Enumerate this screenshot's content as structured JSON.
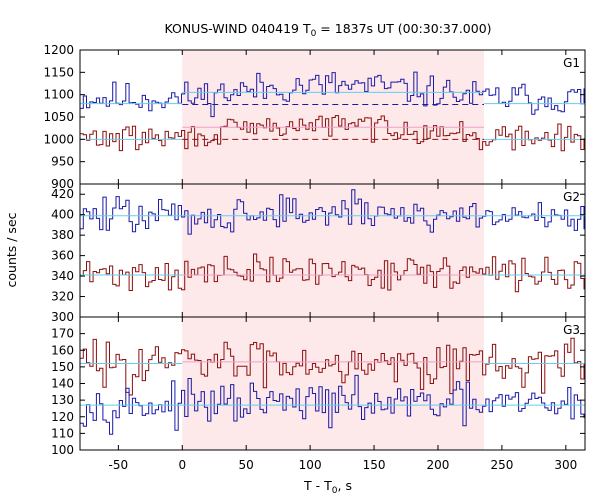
{
  "chart_data": {
    "type": "line",
    "title": "KONUS-WIND 040419 T0 = 1837s UT (00:30:37.000)",
    "title_parts": {
      "before": "KONUS-WIND 040419 T",
      "sub": "0",
      "after": " = 1837s UT (00:30:37.000)"
    },
    "xlabel_parts": {
      "before": "T - T",
      "sub": "0",
      "after": ", s"
    },
    "ylabel": "counts / sec",
    "xlim": [
      -80,
      315
    ],
    "xticks": [
      -50,
      0,
      50,
      100,
      150,
      200,
      250,
      300
    ],
    "highlight_region": [
      0,
      236
    ],
    "colors": {
      "blue": "#1a1aa6",
      "red": "#8b0f0f",
      "background_fit": "#66ccee",
      "highlight": "#fde8ea"
    },
    "panels": [
      {
        "label": "G1",
        "ylim": [
          900,
          1200
        ],
        "yticks": [
          900,
          950,
          1000,
          1050,
          1100,
          1150,
          1200
        ],
        "series": [
          {
            "color": "blue",
            "mean": 1092,
            "noise": 18,
            "bg_level": 1080,
            "peak": 28,
            "fit_level": 1105,
            "dashed_level": 1078,
            "seed": 11
          },
          {
            "color": "red",
            "mean": 1003,
            "noise": 14,
            "bg_level": 1000,
            "peak": 30,
            "fit_level": 1027,
            "dashed_level": 1000,
            "seed": 29
          }
        ]
      },
      {
        "label": "G2",
        "ylim": [
          300,
          430
        ],
        "yticks": [
          300,
          320,
          340,
          360,
          380,
          400,
          420
        ],
        "series": [
          {
            "color": "blue",
            "mean": 399,
            "noise": 9,
            "bg_level": 399,
            "peak": 3,
            "fit_level": 399,
            "seed": 47
          },
          {
            "color": "red",
            "mean": 342,
            "noise": 8,
            "bg_level": 341,
            "peak": 3,
            "fit_level": 341,
            "seed": 71
          }
        ]
      },
      {
        "label": "G3",
        "ylim": [
          100,
          180
        ],
        "yticks": [
          100,
          110,
          120,
          130,
          140,
          150,
          160,
          170
        ],
        "series": [
          {
            "color": "red",
            "mean": 152,
            "noise": 7,
            "bg_level": 152,
            "peak": 2,
            "fit_level": 153,
            "seed": 83
          },
          {
            "color": "blue",
            "mean": 127,
            "noise": 6,
            "bg_level": 127,
            "peak": 1,
            "fit_level": 127,
            "seed": 97
          }
        ]
      }
    ]
  }
}
